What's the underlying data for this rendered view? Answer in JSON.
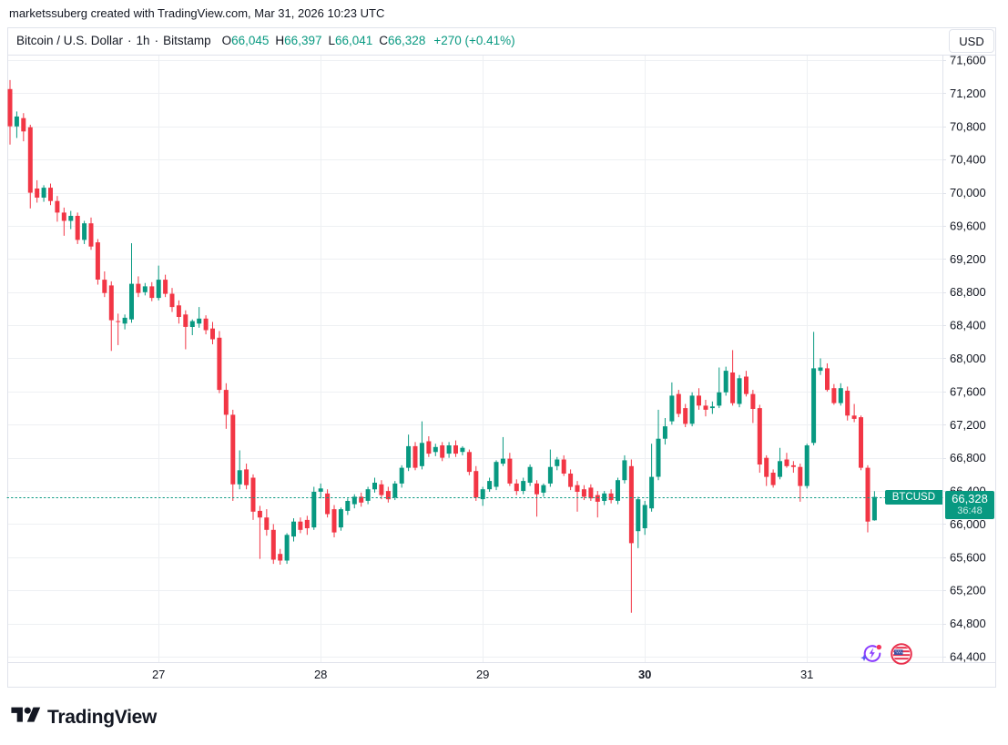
{
  "attribution": {
    "text": "marketssuberg created with TradingView.com, Mar 31, 2026 10:23 UTC"
  },
  "legend": {
    "symbol_title": "Bitcoin / U.S. Dollar",
    "separator": "·",
    "interval": "1h",
    "exchange": "Bitstamp",
    "ohlc": {
      "o_label": "O",
      "o": "66,045",
      "h_label": "H",
      "h": "66,397",
      "l_label": "L",
      "l": "66,041",
      "c_label": "C",
      "c": "66,328",
      "change": "+270 (+0.41%)"
    }
  },
  "currency_button": {
    "label": "USD"
  },
  "price_label": {
    "symbol": "BTCUSD",
    "price": "66,328",
    "countdown": "36:48"
  },
  "footer": {
    "brand": "TradingView"
  },
  "icons": {
    "bottom_right_left": "ai-spark-icon",
    "bottom_right_right": "us-flag-icon",
    "footer": "tradingview-logo-icon"
  },
  "colors": {
    "up": "#089981",
    "down": "#F23645",
    "grid": "#eef0f3",
    "border": "#e0e3eb",
    "axis_text": "#131722",
    "badge_bg": "#089981",
    "price_line": "#089981"
  },
  "chart_data": {
    "type": "candlestick",
    "title": "Bitcoin / U.S. Dollar, 1h, Bitstamp",
    "symbol": "BTCUSD",
    "exchange": "Bitstamp",
    "interval": "1h",
    "ylim": [
      64280,
      71670
    ],
    "grid": true,
    "price_line": 66328,
    "current": {
      "open": 66045,
      "high": 66397,
      "low": 66041,
      "close": 66328,
      "change": 270,
      "change_pct": 0.41
    },
    "y_ticks": [
      71600,
      71200,
      70800,
      70400,
      70000,
      69600,
      69200,
      68800,
      68400,
      68000,
      67600,
      67200,
      66800,
      66400,
      66000,
      65600,
      65200,
      64800,
      64400
    ],
    "y_tick_labels": [
      "71,600",
      "71,200",
      "70,800",
      "70,400",
      "70,000",
      "69,600",
      "69,200",
      "68,800",
      "68,400",
      "68,000",
      "67,600",
      "67,200",
      "66,800",
      "66,400",
      "66,000",
      "65,600",
      "65,200",
      "64,800",
      "64,400"
    ],
    "day_ticks": [
      {
        "label": "27",
        "candle_index": 22,
        "bold": false
      },
      {
        "label": "28",
        "candle_index": 46,
        "bold": false
      },
      {
        "label": "29",
        "candle_index": 70,
        "bold": false
      },
      {
        "label": "30",
        "candle_index": 94,
        "bold": true
      },
      {
        "label": "31",
        "candle_index": 118,
        "bold": false
      }
    ],
    "candles": [
      [
        71250,
        71360,
        70580,
        70800
      ],
      [
        70800,
        70980,
        70660,
        70920
      ],
      [
        70900,
        70960,
        70620,
        70740
      ],
      [
        70790,
        70820,
        69810,
        70000
      ],
      [
        70050,
        70150,
        69880,
        69940
      ],
      [
        69940,
        70090,
        69890,
        70060
      ],
      [
        70060,
        70110,
        69850,
        69900
      ],
      [
        69900,
        69960,
        69650,
        69760
      ],
      [
        69760,
        69820,
        69480,
        69660
      ],
      [
        69660,
        69780,
        69560,
        69720
      ],
      [
        69720,
        69760,
        69380,
        69430
      ],
      [
        69430,
        69660,
        69380,
        69630
      ],
      [
        69630,
        69700,
        69310,
        69350
      ],
      [
        69400,
        69440,
        68890,
        68950
      ],
      [
        68950,
        69050,
        68740,
        68790
      ],
      [
        68880,
        68930,
        68090,
        68460
      ],
      [
        68450,
        68540,
        68160,
        68440
      ],
      [
        68420,
        68530,
        68350,
        68490
      ],
      [
        68470,
        69390,
        68430,
        68900
      ],
      [
        68900,
        68990,
        68740,
        68790
      ],
      [
        68800,
        68910,
        68760,
        68870
      ],
      [
        68870,
        68920,
        68690,
        68730
      ],
      [
        68730,
        69120,
        68700,
        68950
      ],
      [
        68950,
        69010,
        68740,
        68780
      ],
      [
        68780,
        68850,
        68560,
        68620
      ],
      [
        68640,
        68700,
        68420,
        68500
      ],
      [
        68530,
        68580,
        68110,
        68380
      ],
      [
        68380,
        68470,
        68280,
        68450
      ],
      [
        68420,
        68620,
        68370,
        68480
      ],
      [
        68480,
        68520,
        68290,
        68340
      ],
      [
        68360,
        68440,
        68170,
        68230
      ],
      [
        68250,
        68330,
        67580,
        67620
      ],
      [
        67620,
        67700,
        67150,
        67320
      ],
      [
        67320,
        67380,
        66280,
        66480
      ],
      [
        66480,
        66890,
        66420,
        66650
      ],
      [
        66660,
        66730,
        66420,
        66470
      ],
      [
        66560,
        66600,
        66050,
        66150
      ],
      [
        66160,
        66220,
        65580,
        66080
      ],
      [
        66080,
        66180,
        65860,
        65930
      ],
      [
        65930,
        66000,
        65520,
        65570
      ],
      [
        65640,
        65700,
        65510,
        65560
      ],
      [
        65560,
        65890,
        65520,
        65870
      ],
      [
        65850,
        66070,
        65790,
        66030
      ],
      [
        66030,
        66080,
        65890,
        65930
      ],
      [
        66050,
        66100,
        65870,
        65950
      ],
      [
        65960,
        66450,
        65930,
        66390
      ],
      [
        66390,
        66490,
        66310,
        66430
      ],
      [
        66370,
        66420,
        66080,
        66120
      ],
      [
        66180,
        66230,
        65840,
        65900
      ],
      [
        65960,
        66200,
        65920,
        66180
      ],
      [
        66160,
        66310,
        66110,
        66280
      ],
      [
        66240,
        66360,
        66190,
        66330
      ],
      [
        66330,
        66380,
        66210,
        66260
      ],
      [
        66280,
        66450,
        66240,
        66420
      ],
      [
        66420,
        66560,
        66380,
        66500
      ],
      [
        66480,
        66530,
        66300,
        66350
      ],
      [
        66400,
        66450,
        66260,
        66300
      ],
      [
        66320,
        66520,
        66290,
        66490
      ],
      [
        66490,
        66710,
        66440,
        66680
      ],
      [
        66680,
        67080,
        66640,
        66940
      ],
      [
        66940,
        66990,
        66650,
        66680
      ],
      [
        66700,
        67240,
        66660,
        66980
      ],
      [
        67000,
        67060,
        66810,
        66850
      ],
      [
        66870,
        66970,
        66820,
        66930
      ],
      [
        66950,
        66990,
        66760,
        66800
      ],
      [
        66850,
        66990,
        66800,
        66950
      ],
      [
        66950,
        67010,
        66810,
        66850
      ],
      [
        66870,
        66940,
        66830,
        66920
      ],
      [
        66870,
        66900,
        66590,
        66630
      ],
      [
        66640,
        66700,
        66280,
        66320
      ],
      [
        66300,
        66450,
        66220,
        66420
      ],
      [
        66420,
        66560,
        66390,
        66520
      ],
      [
        66450,
        66770,
        66410,
        66750
      ],
      [
        66730,
        67050,
        66700,
        66790
      ],
      [
        66790,
        66860,
        66460,
        66490
      ],
      [
        66490,
        66540,
        66350,
        66400
      ],
      [
        66400,
        66560,
        66360,
        66520
      ],
      [
        66500,
        66720,
        66460,
        66690
      ],
      [
        66490,
        66530,
        66090,
        66360
      ],
      [
        66380,
        66490,
        66330,
        66470
      ],
      [
        66490,
        66900,
        66450,
        66690
      ],
      [
        66700,
        66810,
        66650,
        66780
      ],
      [
        66780,
        66830,
        66580,
        66610
      ],
      [
        66610,
        66660,
        66410,
        66450
      ],
      [
        66470,
        66520,
        66150,
        66390
      ],
      [
        66420,
        66470,
        66290,
        66330
      ],
      [
        66440,
        66480,
        66280,
        66310
      ],
      [
        66350,
        66400,
        66080,
        66270
      ],
      [
        66280,
        66400,
        66230,
        66370
      ],
      [
        66370,
        66420,
        66250,
        66290
      ],
      [
        66280,
        66560,
        66240,
        66530
      ],
      [
        66530,
        66830,
        66490,
        66770
      ],
      [
        66700,
        66780,
        64930,
        65770
      ],
      [
        65915,
        66330,
        65710,
        66300
      ],
      [
        65950,
        66280,
        65870,
        66230
      ],
      [
        66190,
        66970,
        66150,
        66570
      ],
      [
        66570,
        67380,
        66530,
        67030
      ],
      [
        67030,
        67280,
        66960,
        67180
      ],
      [
        67240,
        67710,
        67200,
        67550
      ],
      [
        67570,
        67620,
        67290,
        67330
      ],
      [
        67400,
        67450,
        67170,
        67210
      ],
      [
        67210,
        67590,
        67180,
        67550
      ],
      [
        67550,
        67640,
        67380,
        67430
      ],
      [
        67430,
        67500,
        67300,
        67380
      ],
      [
        67400,
        67480,
        67330,
        67420
      ],
      [
        67430,
        67890,
        67400,
        67590
      ],
      [
        67590,
        67900,
        67550,
        67850
      ],
      [
        67830,
        68100,
        67430,
        67460
      ],
      [
        67450,
        67800,
        67410,
        67760
      ],
      [
        67780,
        67850,
        67540,
        67570
      ],
      [
        67570,
        67620,
        67220,
        67390
      ],
      [
        67400,
        67440,
        66620,
        66720
      ],
      [
        66800,
        66830,
        66460,
        66570
      ],
      [
        66620,
        66660,
        66440,
        66470
      ],
      [
        66570,
        66920,
        66540,
        66760
      ],
      [
        66780,
        66860,
        66680,
        66700
      ],
      [
        66710,
        66760,
        66620,
        66690
      ],
      [
        66690,
        66730,
        66270,
        66460
      ],
      [
        66460,
        66970,
        66430,
        66950
      ],
      [
        66980,
        68320,
        66950,
        67880
      ],
      [
        67850,
        68000,
        67800,
        67890
      ],
      [
        67880,
        67940,
        67600,
        67620
      ],
      [
        67640,
        67690,
        67440,
        67460
      ],
      [
        67460,
        67700,
        67430,
        67640
      ],
      [
        67610,
        67660,
        67250,
        67310
      ],
      [
        67310,
        67450,
        67230,
        67270
      ],
      [
        67290,
        67310,
        66650,
        66680
      ],
      [
        66680,
        66710,
        65900,
        66030
      ],
      [
        66045,
        66397,
        66041,
        66328
      ]
    ]
  }
}
